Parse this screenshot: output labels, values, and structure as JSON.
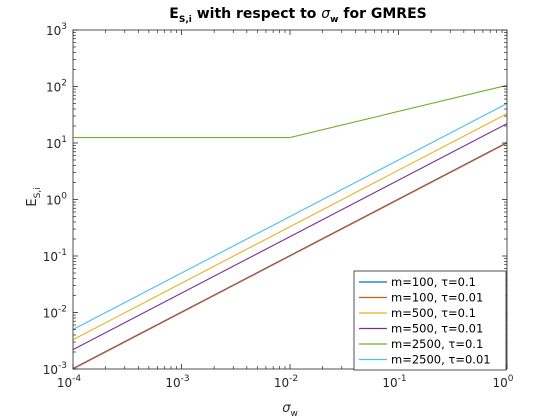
{
  "chart_data": {
    "type": "line",
    "title": {
      "main": "E",
      "main_sub": "S,i",
      "mid": " with respect to ",
      "greek": "σ",
      "greek_sub": "w",
      "tail": " for GMRES"
    },
    "xlabel": {
      "main": "σ",
      "sub": "w"
    },
    "ylabel": {
      "main": "E",
      "sub": "S,i"
    },
    "xscale": "log",
    "yscale": "log",
    "xlim": [
      0.0001,
      1
    ],
    "ylim": [
      0.001,
      1000
    ],
    "grid": false,
    "legend_position": "bottom-right",
    "x_ticks": [
      {
        "base": "10",
        "exp": "-4",
        "value": 0.0001
      },
      {
        "base": "10",
        "exp": "-3",
        "value": 0.001
      },
      {
        "base": "10",
        "exp": "-2",
        "value": 0.01
      },
      {
        "base": "10",
        "exp": "-1",
        "value": 0.1
      },
      {
        "base": "10",
        "exp": "0",
        "value": 1
      }
    ],
    "y_ticks": [
      {
        "base": "10",
        "exp": "-3",
        "value": 0.001
      },
      {
        "base": "10",
        "exp": "-2",
        "value": 0.01
      },
      {
        "base": "10",
        "exp": "-1",
        "value": 0.1
      },
      {
        "base": "10",
        "exp": "0",
        "value": 1
      },
      {
        "base": "10",
        "exp": "1",
        "value": 10
      },
      {
        "base": "10",
        "exp": "2",
        "value": 100
      },
      {
        "base": "10",
        "exp": "3",
        "value": 1000
      }
    ],
    "series": [
      {
        "name": "m=100, τ=0.1",
        "color": "#0072bd",
        "x": [
          0.0001,
          1
        ],
        "y": [
          0.00102,
          10.2
        ]
      },
      {
        "name": "m=100, τ=0.01",
        "color": "#d95319",
        "x": [
          0.0001,
          1
        ],
        "y": [
          0.001,
          10.0
        ]
      },
      {
        "name": "m=500, τ=0.1",
        "color": "#edb120",
        "x": [
          0.0001,
          1
        ],
        "y": [
          0.0033,
          33.0
        ]
      },
      {
        "name": "m=500, τ=0.01",
        "color": "#7e2f8e",
        "x": [
          0.0001,
          1
        ],
        "y": [
          0.0022,
          22.0
        ]
      },
      {
        "name": "m=2500, τ=0.1",
        "color": "#77ac30",
        "x": [
          0.0001,
          0.01,
          1
        ],
        "y": [
          12.5,
          12.5,
          105
        ]
      },
      {
        "name": "m=2500, τ=0.01",
        "color": "#4dbeee",
        "x": [
          0.0001,
          1
        ],
        "y": [
          0.005,
          50.0
        ]
      }
    ]
  }
}
